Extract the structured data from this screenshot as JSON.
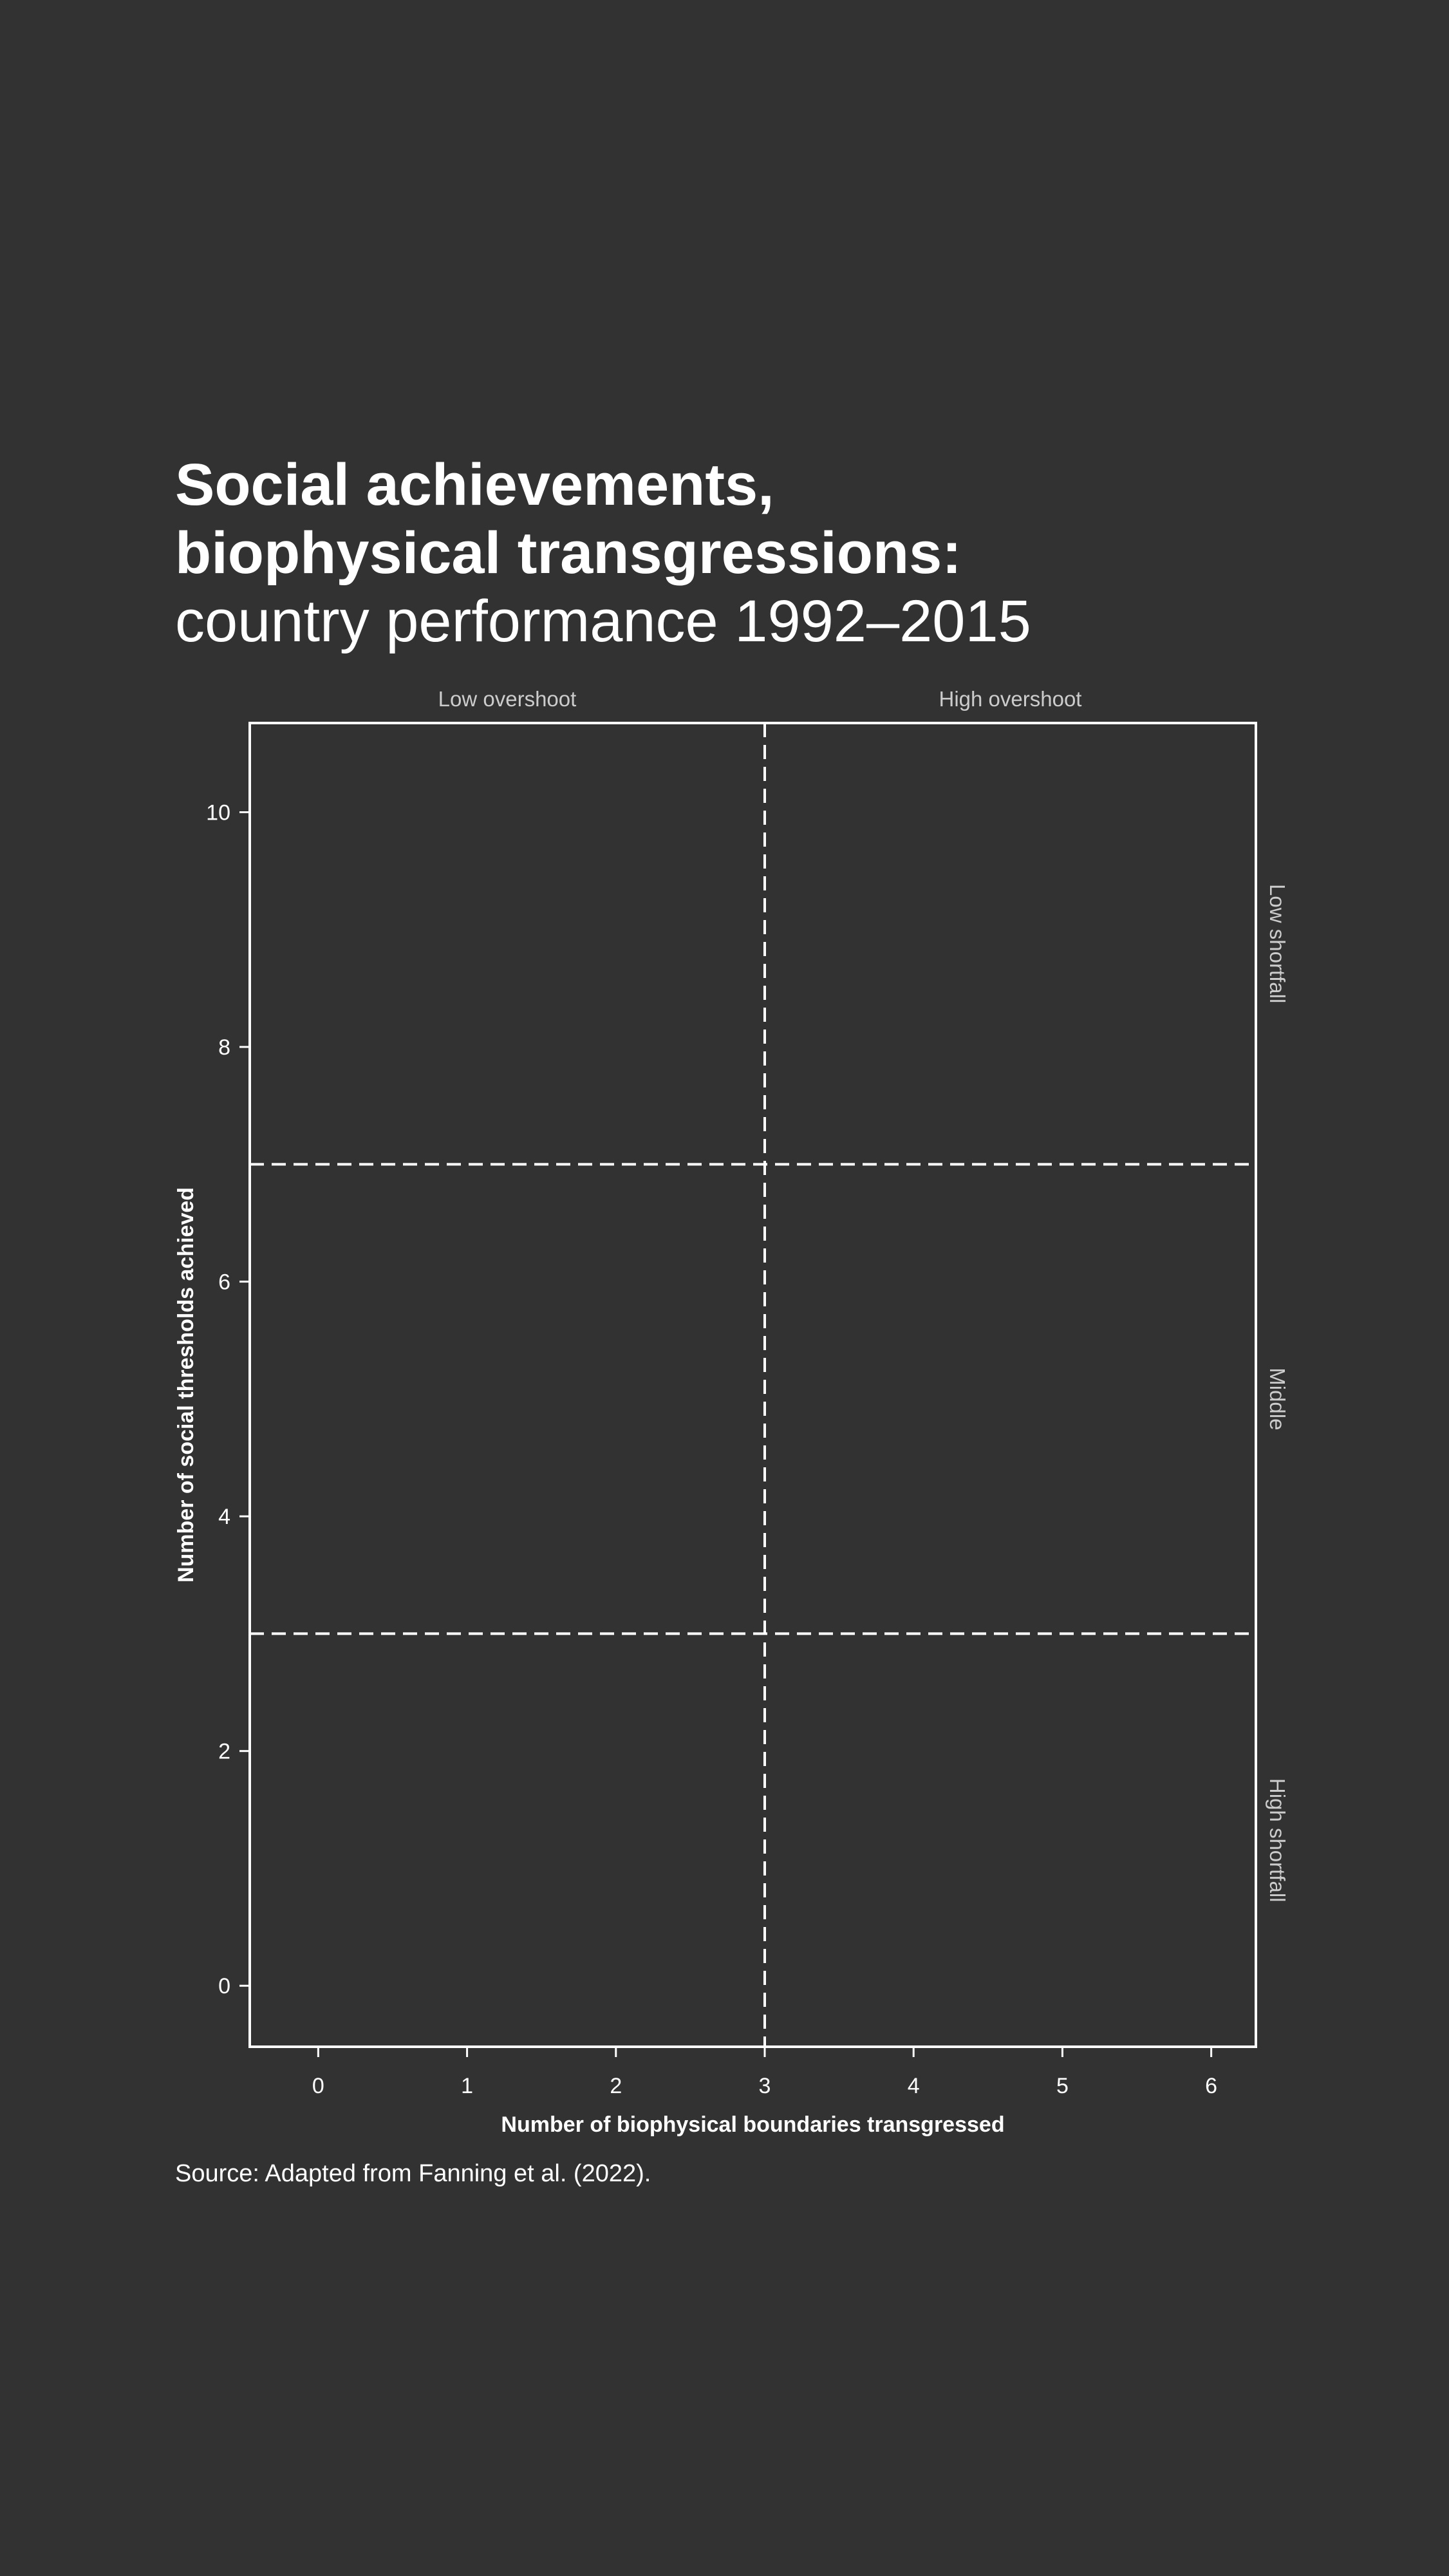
{
  "header": {
    "title_line1": "Social achievements,",
    "title_line2": "biophysical transgressions:",
    "subtitle": "country performance 1992–2015"
  },
  "footer": {
    "source": "Source: Adapted from Fanning et al. (2022)."
  },
  "colors": {
    "background": "#323232",
    "foreground": "#ffffff",
    "region_label": "#cccccc"
  },
  "chart_data": {
    "type": "scatter",
    "title": "Social achievements, biophysical transgressions: country performance 1992–2015",
    "xlabel": "Number of biophysical boundaries transgressed",
    "ylabel": "Number of social thresholds achieved",
    "xlim": [
      -0.46,
      6.3
    ],
    "ylim": [
      -0.52,
      10.76
    ],
    "xticks": [
      0,
      1,
      2,
      3,
      4,
      5,
      6
    ],
    "yticks": [
      0,
      2,
      4,
      6,
      8,
      10
    ],
    "grid": false,
    "series": [],
    "reference_lines": {
      "vertical_x": [
        3
      ],
      "horizontal_y": [
        3,
        7
      ],
      "style": "dashed"
    },
    "column_labels": [
      {
        "text": "Low overshoot",
        "x_range": [
          -0.46,
          3
        ]
      },
      {
        "text": "High overshoot",
        "x_range": [
          3,
          6.3
        ]
      }
    ],
    "row_labels": [
      {
        "text": "Low shortfall",
        "y_range": [
          7,
          10.76
        ]
      },
      {
        "text": "Middle",
        "y_range": [
          3,
          7
        ]
      },
      {
        "text": "High shortfall",
        "y_range": [
          -0.52,
          3
        ]
      }
    ]
  }
}
